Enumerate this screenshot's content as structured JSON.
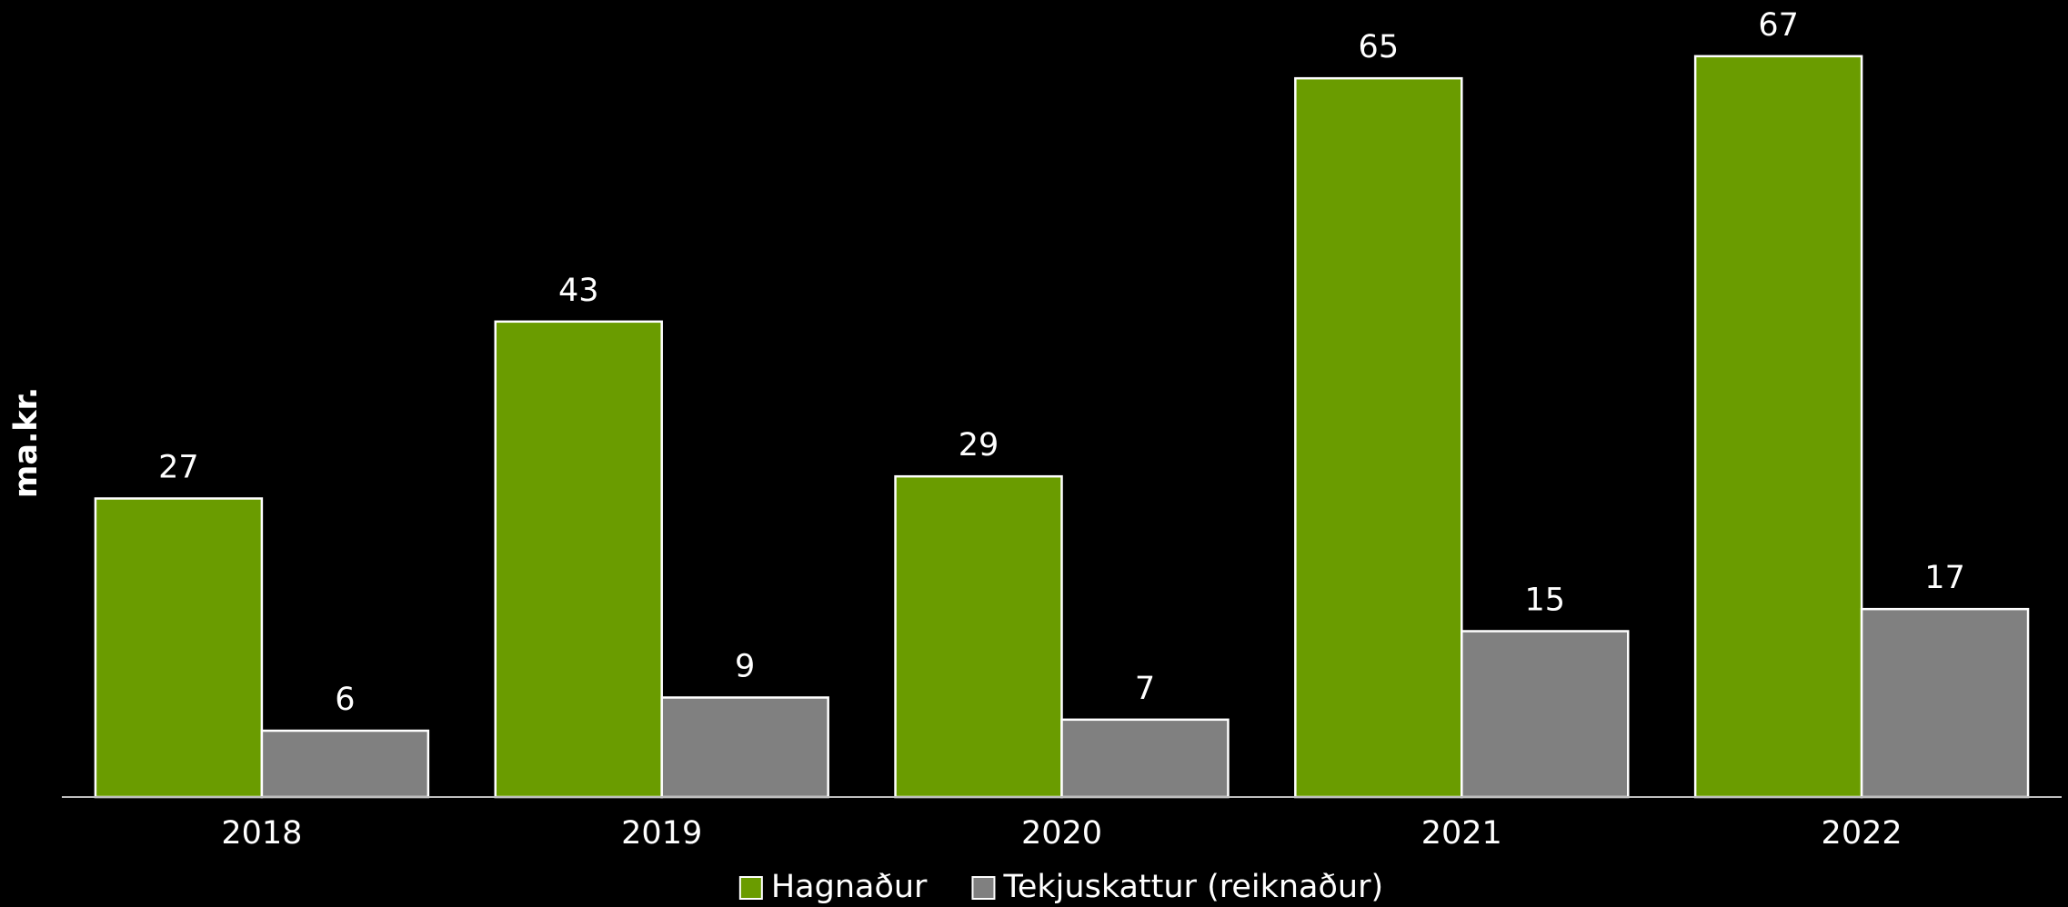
{
  "chart_data": {
    "type": "bar",
    "y_label": "ma.kr.",
    "categories": [
      "2018",
      "2019",
      "2020",
      "2021",
      "2022"
    ],
    "series": [
      {
        "name": "Hagnaður",
        "color": "#6a9c00",
        "values": [
          27,
          43,
          29,
          65,
          67
        ]
      },
      {
        "name": "Tekjuskattur (reiknaður)",
        "color": "#808080",
        "values": [
          6,
          9,
          7,
          15,
          17
        ]
      }
    ],
    "ylim": [
      0,
      72
    ],
    "legend": "bottom"
  }
}
